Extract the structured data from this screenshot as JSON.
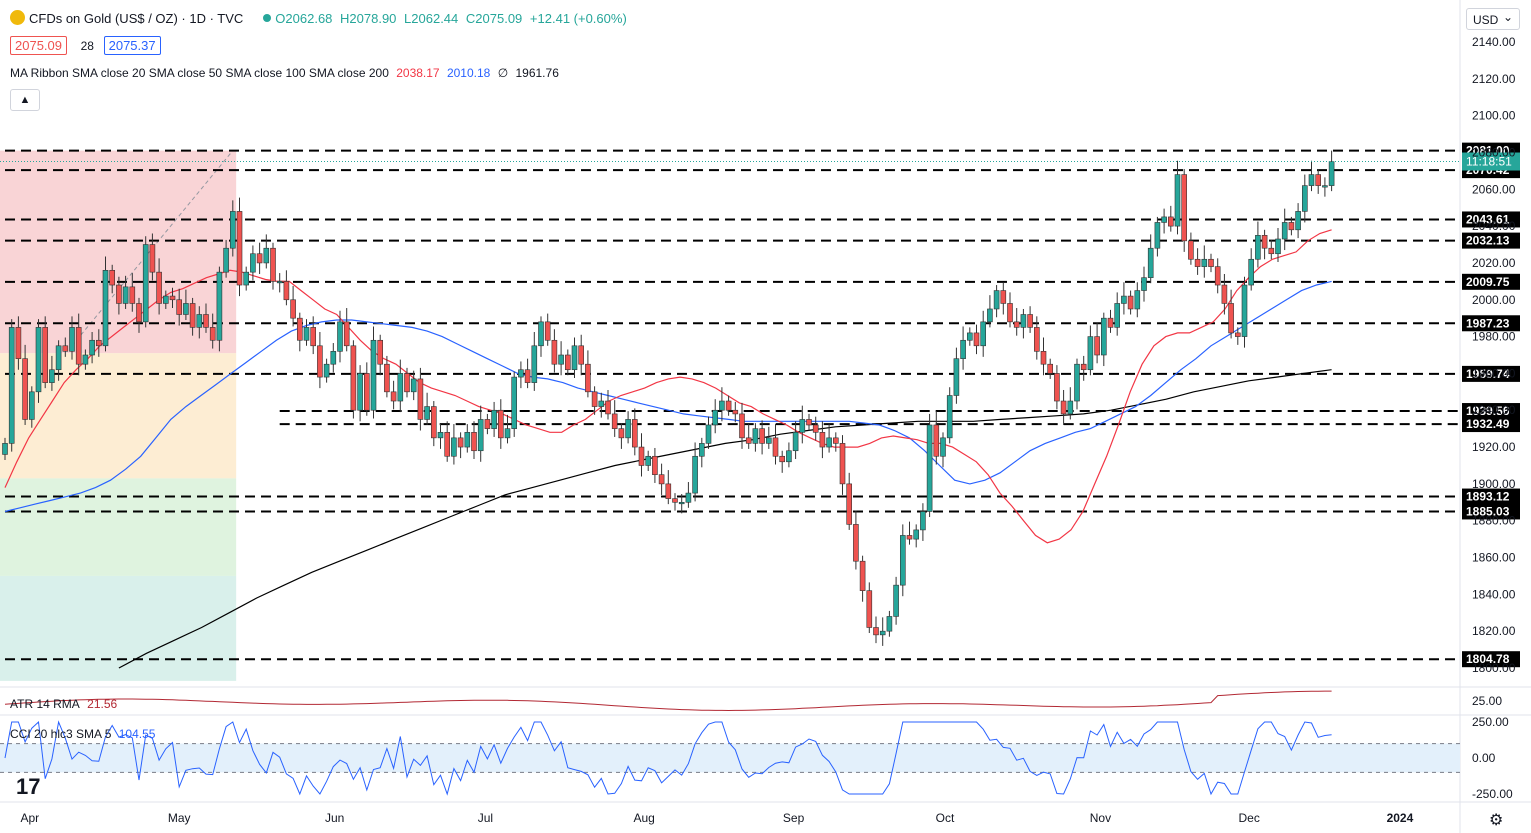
{
  "header": {
    "title": "CFDs on Gold (US$ / OZ) · 1D · TVC",
    "ohlc": {
      "o": "O2062.68",
      "h": "H2078.90",
      "l": "L2062.44",
      "c": "C2075.09",
      "chg": "+12.41 (+0.60%)"
    },
    "bid": "2075.09",
    "spread": "28",
    "ask": "2075.37",
    "ma_label": "MA Ribbon SMA close 20 SMA close 50 SMA close 100 SMA close 200",
    "ma_values": [
      "2038.17",
      "2010.18",
      "∅",
      "1961.76"
    ],
    "currency": "USD",
    "atr_label": "ATR 14 RMA",
    "atr_value": "21.56",
    "cci_label": "CCI 20 hlc3 SMA 5",
    "cci_value": "104.55",
    "logo_text": "17"
  },
  "colors": {
    "up": "#26a69a",
    "down": "#ef5350",
    "ma20": "#f23645",
    "ma50": "#2962ff",
    "ma200": "#000000",
    "atr": "#b22833",
    "cci": "#2962ff"
  },
  "chart_data": {
    "type": "candlestick",
    "price_axis": {
      "min": 1790,
      "max": 2150,
      "ticks": [
        1800,
        1820,
        1840,
        1860,
        1880,
        1900,
        1920,
        1940,
        1960,
        1980,
        2000,
        2020,
        2040,
        2060,
        2080,
        2100,
        2120,
        2140
      ]
    },
    "date_ticks": [
      "Apr",
      "May",
      "Jun",
      "Jul",
      "Aug",
      "Sep",
      "Oct",
      "Nov",
      "Dec",
      "2024"
    ],
    "date_tick_positions": [
      3.7,
      26.0,
      49.2,
      71.7,
      95.4,
      117.7,
      140.3,
      163.5,
      185.7,
      208.2
    ],
    "levels": [
      {
        "value": 2081.0,
        "label": "2081.00",
        "start": 0
      },
      {
        "value": 2070.42,
        "label": "2070.42",
        "start": 0
      },
      {
        "value": 2043.61,
        "label": "2043.61",
        "start": 0
      },
      {
        "value": 2032.13,
        "label": "2032.13",
        "start": 0
      },
      {
        "value": 2009.75,
        "label": "2009.75",
        "start": 0
      },
      {
        "value": 1987.23,
        "label": "1987.23",
        "start": 0
      },
      {
        "value": 1959.74,
        "label": "1959.74",
        "start": 0
      },
      {
        "value": 1939.56,
        "label": "1939.56",
        "start": 41
      },
      {
        "value": 1932.49,
        "label": "1932.49",
        "start": 41
      },
      {
        "value": 1893.12,
        "label": "1893.12",
        "start": 0
      },
      {
        "value": 1885.03,
        "label": "1885.03",
        "start": 0
      },
      {
        "value": 1804.78,
        "label": "1804.78",
        "start": 0
      }
    ],
    "last_price": {
      "value": 2075.09,
      "countdown": "11:18:51"
    },
    "fib": {
      "x_end": 34.5,
      "bands": [
        {
          "top": 2081,
          "bottom": 1971,
          "color": "#f8c9cc"
        },
        {
          "top": 1971,
          "bottom": 1903,
          "color": "#fde8c8"
        },
        {
          "top": 1903,
          "bottom": 1850,
          "color": "#d7f0d7"
        },
        {
          "top": 1850,
          "bottom": 1793,
          "color": "#cfece6"
        }
      ]
    },
    "close": [
      1922,
      1985,
      1968,
      1935,
      1950,
      1985,
      1955,
      1962,
      1975,
      1972,
      1985,
      1965,
      1970,
      1978,
      1975,
      2016,
      2008,
      1998,
      2007,
      1998,
      1988,
      2030,
      2015,
      1998,
      2002,
      2000,
      1992,
      1998,
      1985,
      1992,
      1985,
      1978,
      2015,
      2028,
      2048,
      2008,
      2015,
      2025,
      2020,
      2028,
      2010,
      2010,
      2000,
      1990,
      1978,
      1985,
      1975,
      1958,
      1965,
      1972,
      1988,
      1975,
      1940,
      1960,
      1940,
      1978,
      1965,
      1950,
      1945,
      1960,
      1950,
      1957,
      1935,
      1942,
      1925,
      1928,
      1915,
      1925,
      1920,
      1928,
      1918,
      1935,
      1930,
      1940,
      1925,
      1930,
      1958,
      1962,
      1955,
      1975,
      1988,
      1978,
      1965,
      1970,
      1962,
      1975,
      1965,
      1950,
      1942,
      1945,
      1938,
      1930,
      1925,
      1935,
      1920,
      1910,
      1915,
      1905,
      1900,
      1892,
      1890,
      1890,
      1895,
      1915,
      1922,
      1932,
      1940,
      1945,
      1940,
      1938,
      1925,
      1922,
      1930,
      1922,
      1925,
      1915,
      1912,
      1918,
      1928,
      1935,
      1932,
      1928,
      1920,
      1925,
      1922,
      1900,
      1878,
      1858,
      1842,
      1822,
      1818,
      1820,
      1828,
      1845,
      1872,
      1870,
      1875,
      1885,
      1932,
      1915,
      1925,
      1948,
      1968,
      1978,
      1982,
      1975,
      1988,
      1995,
      2005,
      1998,
      1988,
      1985,
      1992,
      1985,
      1972,
      1965,
      1960,
      1945,
      1938,
      1945,
      1965,
      1962,
      1980,
      1970,
      1990,
      1985,
      1998,
      2002,
      1995,
      2005,
      2012,
      2028,
      2042,
      2045,
      2040,
      2068,
      2032,
      2022,
      2018,
      2022,
      2018,
      2008,
      1998,
      1982,
      1980,
      2008,
      2022,
      2035,
      2028,
      2025,
      2033,
      2042,
      2038,
      2048,
      2062,
      2068,
      2062,
      2062,
      2075
    ],
    "ma20": [
      1898,
      1912,
      1925,
      1935,
      1945,
      1955,
      1962,
      1968,
      1975,
      1980,
      1985,
      1990,
      1995,
      2000,
      2004,
      2006,
      2009,
      2012,
      2014,
      2016,
      2015,
      2013,
      2011,
      2010,
      2010,
      2005,
      2000,
      1995,
      1992,
      1985,
      1978,
      1972,
      1968,
      1965,
      1960,
      1955,
      1952,
      1950,
      1948,
      1945,
      1942,
      1940,
      1938,
      1935,
      1932,
      1930,
      1928,
      1928,
      1932,
      1935,
      1940,
      1945,
      1948,
      1950,
      1952,
      1955,
      1957,
      1958,
      1957,
      1955,
      1952,
      1948,
      1944,
      1942,
      1938,
      1935,
      1932,
      1928,
      1925,
      1922,
      1920,
      1920,
      1920,
      1922,
      1925,
      1926,
      1925,
      1924,
      1922,
      1922,
      1920,
      1916,
      1912,
      1905,
      1895,
      1888,
      1880,
      1872,
      1868,
      1870,
      1875,
      1885,
      1900,
      1915,
      1932,
      1950,
      1965,
      1975,
      1980,
      1982,
      1982,
      1985,
      1988,
      1995,
      2005,
      2012,
      2018,
      2022,
      2024,
      2026,
      2032,
      2036,
      2038
    ],
    "ma20_start": 0,
    "ma50": [
      1885,
      1887,
      1889,
      1891,
      1893,
      1895,
      1898,
      1902,
      1908,
      1915,
      1925,
      1935,
      1942,
      1948,
      1954,
      1960,
      1966,
      1972,
      1978,
      1983,
      1986,
      1988,
      1989,
      1989,
      1988,
      1987,
      1986,
      1985,
      1983,
      1980,
      1976,
      1972,
      1968,
      1964,
      1960,
      1958,
      1957,
      1955,
      1952,
      1950,
      1948,
      1946,
      1944,
      1942,
      1940,
      1938,
      1937,
      1936,
      1935,
      1934,
      1934,
      1934,
      1934,
      1934,
      1934,
      1934,
      1934,
      1933,
      1932,
      1929,
      1925,
      1918,
      1910,
      1902,
      1900,
      1902,
      1906,
      1912,
      1918,
      1922,
      1925,
      1928,
      1930,
      1934,
      1938,
      1942,
      1948,
      1955,
      1962,
      1968,
      1975,
      1980,
      1985,
      1990,
      1995,
      2000,
      2005,
      2008,
      2010
    ],
    "ma50_start": 0,
    "ma200": [
      1800,
      1808,
      1815,
      1822,
      1830,
      1838,
      1845,
      1852,
      1858,
      1864,
      1870,
      1876,
      1882,
      1888,
      1894,
      1898,
      1902,
      1906,
      1910,
      1913,
      1916,
      1919,
      1922,
      1924,
      1927,
      1929,
      1931,
      1932,
      1933,
      1934,
      1934,
      1934,
      1935,
      1936,
      1937,
      1938,
      1940,
      1943,
      1946,
      1950,
      1953,
      1956,
      1958,
      1960,
      1962
    ],
    "ma200_start": 17,
    "atr": {
      "value": 21.56,
      "tick": "25.00"
    },
    "cci": {
      "value": 104.55,
      "ticks": [
        "250.00",
        "0.00",
        "-250.00"
      ],
      "upper": 100,
      "lower": -100
    }
  }
}
